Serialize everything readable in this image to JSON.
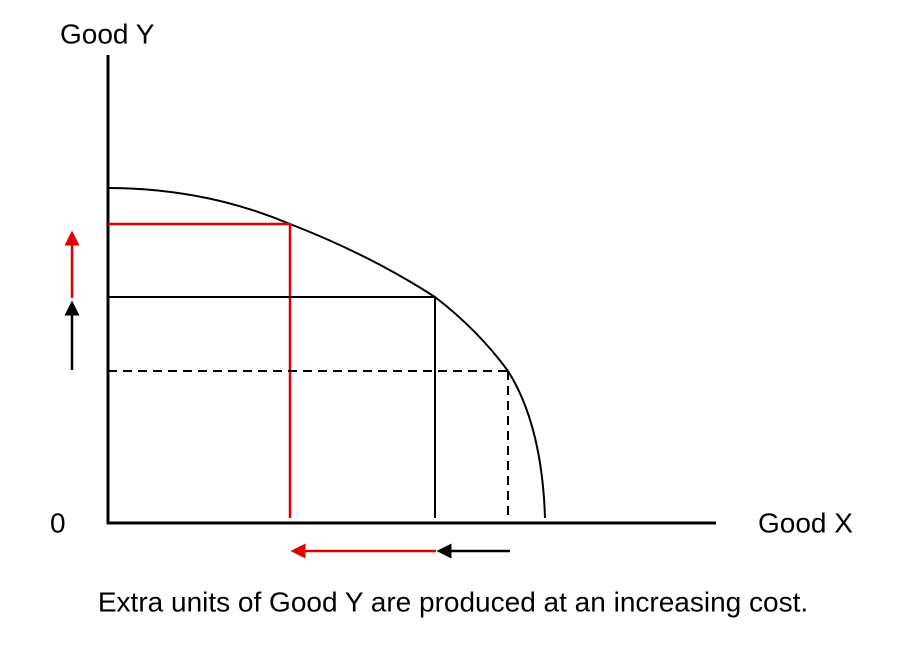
{
  "axes": {
    "y_label": "Good Y",
    "x_label": "Good X",
    "origin": "0"
  },
  "caption": "Extra units of Good Y are produced at an increasing cost."
}
